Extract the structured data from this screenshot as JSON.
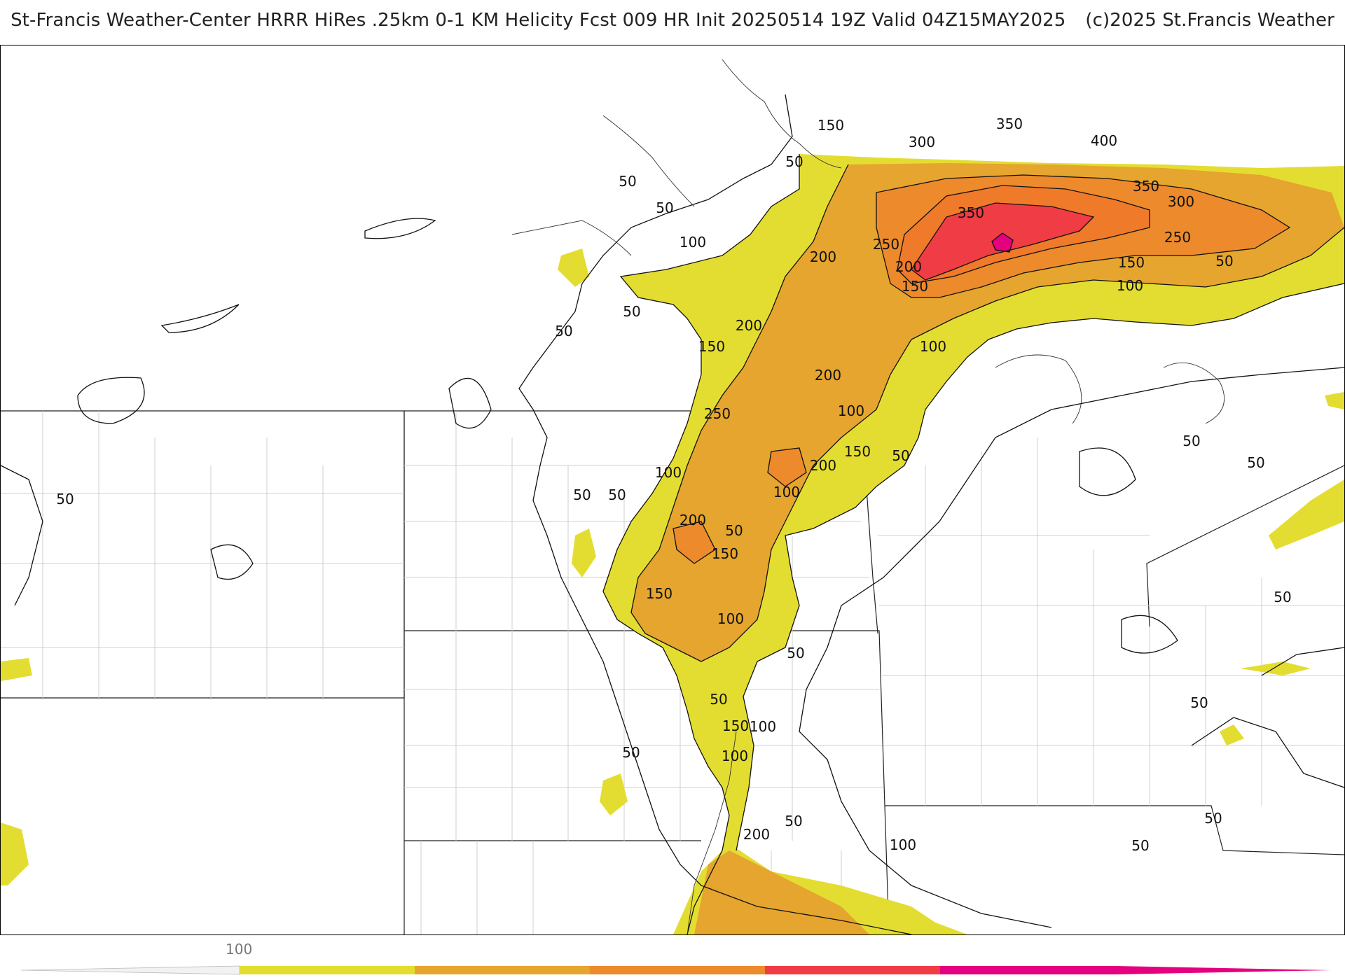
{
  "header": {
    "title_main": "St-Francis Weather-Center HRRR HiRes .25km 0-1 KM Helicity Fcst 009 HR Init 20250514 19Z  Valid 04Z15MAY2025",
    "title_credit": "(c)2025 St.Francis Weather"
  },
  "map": {
    "type": "helicity-contour-map",
    "field": "0-1 KM Helicity",
    "contour_labels": [
      "50",
      "100",
      "150",
      "200",
      "250",
      "300",
      "350",
      "400"
    ],
    "fill_colors": {
      "level_100": "#e4dd31",
      "level_200": "#e5a52e",
      "level_250": "#ec8a2c",
      "level_300": "#ef7a2a",
      "level_350": "#f03c44",
      "level_400": "#e4007f"
    },
    "labels": [
      {
        "text": "150"
      },
      {
        "text": "50"
      },
      {
        "text": "350"
      },
      {
        "text": "300"
      },
      {
        "text": "400"
      },
      {
        "text": "50"
      },
      {
        "text": "50"
      },
      {
        "text": "350"
      },
      {
        "text": "300"
      },
      {
        "text": "350"
      },
      {
        "text": "100"
      },
      {
        "text": "200"
      },
      {
        "text": "250"
      },
      {
        "text": "200"
      },
      {
        "text": "150"
      },
      {
        "text": "250"
      },
      {
        "text": "150"
      },
      {
        "text": "100"
      },
      {
        "text": "50"
      },
      {
        "text": "50"
      },
      {
        "text": "200"
      },
      {
        "text": "150"
      },
      {
        "text": "100"
      },
      {
        "text": "50"
      },
      {
        "text": "200"
      },
      {
        "text": "250"
      },
      {
        "text": "100"
      },
      {
        "text": "150"
      },
      {
        "text": "50"
      },
      {
        "text": "200"
      },
      {
        "text": "100"
      },
      {
        "text": "50"
      },
      {
        "text": "50"
      },
      {
        "text": "200"
      },
      {
        "text": "100"
      },
      {
        "text": "50"
      },
      {
        "text": "150"
      },
      {
        "text": "150"
      },
      {
        "text": "100"
      },
      {
        "text": "50"
      },
      {
        "text": "50"
      },
      {
        "text": "150"
      },
      {
        "text": "100"
      },
      {
        "text": "50"
      },
      {
        "text": "100"
      },
      {
        "text": "200"
      },
      {
        "text": "100"
      },
      {
        "text": "50"
      },
      {
        "text": "50"
      },
      {
        "text": "50"
      },
      {
        "text": "50"
      },
      {
        "text": "50"
      },
      {
        "text": "50"
      },
      {
        "text": "50"
      },
      {
        "text": "50"
      }
    ]
  },
  "colorbar": {
    "tick_label": "100",
    "colors": [
      "#e4dd31",
      "#e5a52e",
      "#ec8a2c",
      "#f03c44",
      "#e4007f"
    ]
  }
}
